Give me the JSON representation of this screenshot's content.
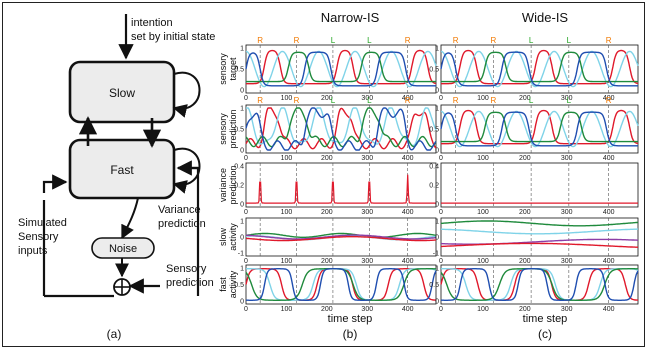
{
  "architecture": {
    "intention_label": [
      "intention",
      "set by initial state"
    ],
    "slow_label": "Slow",
    "fast_label": "Fast",
    "noise_label": "Noise",
    "simulated_inputs_label": [
      "Simulated",
      "Sensory",
      "inputs"
    ],
    "variance_prediction_label": [
      "Variance",
      "prediction"
    ],
    "sensory_prediction_label": [
      "Sensory",
      "prediction"
    ],
    "panel_label": "(a)"
  },
  "panels": [
    {
      "title": "Narrow-IS",
      "panel_label": "(b)"
    },
    {
      "title": "Wide-IS",
      "panel_label": "(c)"
    }
  ],
  "row_labels": [
    [
      "sensory",
      "target"
    ],
    [
      "sensory",
      "prediction"
    ],
    [
      "variance",
      "prediction"
    ],
    [
      "slow",
      "activity"
    ],
    [
      "fast",
      "activity"
    ]
  ],
  "xlabel": "time step",
  "x_ticks": [
    "0",
    "100",
    "200",
    "300",
    "400"
  ],
  "y_ticks": {
    "sensory": [
      "1",
      "0.5",
      "0"
    ],
    "variance": [
      "0.4",
      "0.2",
      "0"
    ],
    "slow": [
      "1",
      "0",
      "-1"
    ],
    "fast": [
      "1",
      "0.5",
      "0"
    ]
  },
  "event_markers": {
    "x": [
      35,
      125,
      215,
      305,
      400
    ],
    "labels": [
      "R",
      "R",
      "L",
      "L",
      "R"
    ],
    "colors": {
      "R": "#f07800",
      "L": "#22a322"
    }
  },
  "colors": {
    "red": "#e0192b",
    "cyan": "#7fd3e8",
    "green": "#1f8a3c",
    "blue": "#1f4eb0",
    "purple": "#8c3da6",
    "navy": "#1a1a6e"
  },
  "chart_data": [
    {
      "type": "line",
      "title": "Narrow-IS",
      "xlabel": "time step",
      "x_range": [
        0,
        470
      ],
      "variance_prediction_peaks": {
        "x": [
          35,
          125,
          215,
          305,
          400
        ],
        "y": [
          0.3,
          0.3,
          0.3,
          0.3,
          0.3
        ]
      },
      "ylim": {
        "sensory": [
          0,
          1
        ],
        "variance": [
          0,
          0.4
        ],
        "slow": [
          -1,
          1
        ],
        "fast": [
          0,
          1
        ]
      }
    },
    {
      "type": "line",
      "title": "Wide-IS",
      "xlabel": "time step",
      "x_range": [
        0,
        470
      ],
      "variance_prediction_peaks": {
        "x": [],
        "y": []
      },
      "ylim": {
        "sensory": [
          0,
          1
        ],
        "variance": [
          0,
          0.4
        ],
        "slow": [
          -1,
          1
        ],
        "fast": [
          0,
          1
        ]
      }
    }
  ]
}
